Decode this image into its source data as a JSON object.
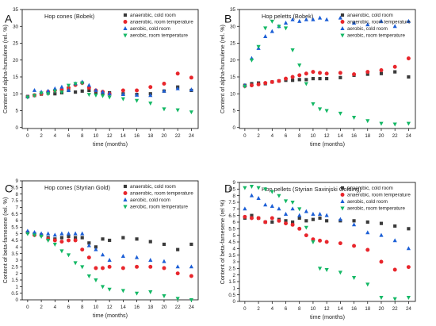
{
  "colors": {
    "anaerobic_cold": "#3a3a3a",
    "anaerobic_room": "#e8262c",
    "aerobic_cold": "#1c5fd6",
    "aerobic_room": "#14b865"
  },
  "chart_data": [
    {
      "panel": "A",
      "type": "scatter",
      "title": "Hop cones (Bobek)",
      "xlabel": "time (months)",
      "ylabel": "Content of alpha-humulene (rel. %)",
      "xlim": [
        -0.8,
        25
      ],
      "ylim": [
        -0.3,
        35
      ],
      "xticks": [
        0,
        2,
        4,
        6,
        8,
        10,
        12,
        14,
        16,
        18,
        20,
        22,
        24
      ],
      "yticks": [
        0,
        5,
        10,
        15,
        20,
        25,
        30,
        35
      ],
      "legend_position": "top-right",
      "series": [
        {
          "name": "anaerobic, cold room",
          "marker": "square",
          "color_key": "anaerobic_cold",
          "x": [
            0,
            1,
            2,
            3,
            4,
            5,
            6,
            7,
            8,
            9,
            10,
            11,
            12,
            14,
            16,
            18,
            20,
            22,
            24
          ],
          "y": [
            9.2,
            9.5,
            9.9,
            10.2,
            10.0,
            10.3,
            11.0,
            10.5,
            10.8,
            11.0,
            10.5,
            10.0,
            10.3,
            10.0,
            9.8,
            10.0,
            10.8,
            12.0,
            11.0
          ]
        },
        {
          "name": "anaerobic, room temperature",
          "marker": "circle",
          "color_key": "anaerobic_room",
          "x": [
            0,
            1,
            2,
            3,
            4,
            5,
            6,
            7,
            8,
            9,
            10,
            11,
            12,
            14,
            16,
            18,
            20,
            22,
            24
          ],
          "y": [
            9.1,
            9.6,
            10.0,
            10.6,
            11.0,
            11.2,
            11.8,
            12.6,
            13.2,
            11.8,
            11.0,
            10.6,
            10.0,
            11.0,
            11.0,
            12.0,
            13.0,
            16.0,
            14.8
          ]
        },
        {
          "name": "aerobic, cold room",
          "marker": "triangle-up",
          "color_key": "aerobic_cold",
          "x": [
            0,
            1,
            2,
            3,
            4,
            5,
            6,
            7,
            8,
            9,
            10,
            11,
            12,
            14,
            16,
            18,
            20,
            22,
            24
          ],
          "y": [
            9.1,
            11.0,
            10.5,
            10.8,
            11.5,
            12.0,
            11.0,
            13.0,
            13.5,
            12.5,
            11.0,
            10.5,
            10.0,
            9.8,
            9.6,
            9.5,
            10.8,
            11.5,
            11.2
          ]
        },
        {
          "name": "aerobic, room temperature",
          "marker": "triangle-down",
          "color_key": "aerobic_room",
          "x": [
            0,
            1,
            2,
            3,
            4,
            5,
            6,
            7,
            8,
            9,
            10,
            11,
            12,
            14,
            16,
            18,
            20,
            22,
            24
          ],
          "y": [
            9.0,
            9.5,
            10.2,
            10.0,
            10.8,
            10.5,
            12.5,
            13.0,
            13.2,
            9.8,
            9.6,
            9.4,
            9.0,
            8.5,
            8.0,
            7.2,
            5.5,
            5.2,
            4.6
          ]
        }
      ]
    },
    {
      "panel": "B",
      "type": "scatter",
      "title": "Hop peletts (Bobek)",
      "xlabel": "time (months)",
      "ylabel": "Content of alpha-humulene (rel. %)",
      "xlim": [
        -0.8,
        25
      ],
      "ylim": [
        -0.3,
        35
      ],
      "xticks": [
        0,
        2,
        4,
        6,
        8,
        10,
        12,
        14,
        16,
        18,
        20,
        22,
        24
      ],
      "yticks": [
        0,
        5,
        10,
        15,
        20,
        25,
        30,
        35
      ],
      "legend_position": "top-right",
      "series": [
        {
          "name": "anaerobic, cold room",
          "marker": "square",
          "color_key": "anaerobic_cold",
          "x": [
            0,
            1,
            2,
            3,
            4,
            5,
            6,
            7,
            8,
            9,
            10,
            11,
            12,
            14,
            16,
            18,
            20,
            22,
            24
          ],
          "y": [
            12.5,
            13.0,
            13.2,
            13.0,
            13.5,
            13.8,
            14.0,
            14.0,
            14.2,
            14.2,
            14.5,
            14.5,
            14.5,
            14.8,
            15.5,
            15.8,
            16.0,
            16.5,
            15.0
          ]
        },
        {
          "name": "anaerobic, room temperature",
          "marker": "circle",
          "color_key": "anaerobic_room",
          "x": [
            0,
            1,
            2,
            3,
            4,
            5,
            6,
            7,
            8,
            9,
            10,
            11,
            12,
            14,
            16,
            18,
            20,
            22,
            24
          ],
          "y": [
            12.3,
            12.5,
            12.8,
            13.2,
            13.5,
            13.8,
            14.5,
            15.0,
            15.5,
            16.0,
            16.5,
            16.2,
            16.0,
            16.2,
            15.8,
            16.5,
            17.0,
            18.0,
            20.5
          ]
        },
        {
          "name": "aerobic, cold room",
          "marker": "triangle-up",
          "color_key": "aerobic_cold",
          "x": [
            0,
            1,
            2,
            3,
            4,
            5,
            6,
            7,
            8,
            9,
            10,
            11,
            12,
            14,
            16,
            18,
            20,
            22,
            24
          ],
          "y": [
            12.5,
            20.5,
            23.5,
            27.0,
            28.5,
            30.0,
            31.0,
            32.0,
            31.5,
            32.0,
            32.0,
            32.5,
            32.0,
            32.5,
            31.0,
            30.5,
            31.5,
            30.0,
            31.5
          ]
        },
        {
          "name": "aerobic, room temperature",
          "marker": "triangle-down",
          "color_key": "aerobic_room",
          "x": [
            0,
            1,
            2,
            3,
            4,
            5,
            6,
            7,
            8,
            9,
            10,
            11,
            12,
            14,
            16,
            18,
            20,
            22,
            24
          ],
          "y": [
            12.2,
            20.0,
            24.0,
            29.5,
            31.5,
            30.0,
            29.5,
            23.0,
            18.5,
            13.0,
            7.0,
            5.5,
            5.0,
            4.2,
            3.0,
            2.0,
            1.2,
            1.0,
            1.2
          ]
        }
      ]
    },
    {
      "panel": "C",
      "type": "scatter",
      "title": "Hop cones (Styrian Gold)",
      "xlabel": "time (months)",
      "ylabel": "Content of beta-farnesene (rel. %)",
      "xlim": [
        -0.8,
        25
      ],
      "ylim": [
        0,
        9
      ],
      "xticks": [
        0,
        2,
        4,
        6,
        8,
        10,
        12,
        14,
        16,
        18,
        20,
        22,
        24
      ],
      "yticks": [
        0,
        0.5,
        1,
        1.5,
        2,
        2.5,
        3,
        3.5,
        4,
        4.5,
        5,
        5.5,
        6,
        6.5,
        7,
        7.5,
        8,
        8.5,
        9
      ],
      "legend_position": "top-right",
      "series": [
        {
          "name": "anaerobic, cold room",
          "marker": "square",
          "color_key": "anaerobic_cold",
          "x": [
            0,
            1,
            2,
            3,
            4,
            5,
            6,
            7,
            8,
            9,
            10,
            11,
            12,
            14,
            16,
            18,
            20,
            22,
            24
          ],
          "y": [
            5.1,
            5.0,
            4.9,
            4.7,
            4.6,
            4.7,
            4.8,
            4.7,
            4.7,
            4.3,
            4.0,
            4.6,
            4.5,
            4.7,
            4.6,
            4.4,
            4.2,
            3.8,
            4.2
          ]
        },
        {
          "name": "anaerobic, room temperature",
          "marker": "circle",
          "color_key": "anaerobic_room",
          "x": [
            0,
            1,
            2,
            3,
            4,
            5,
            6,
            7,
            8,
            9,
            10,
            11,
            12,
            14,
            16,
            18,
            20,
            22,
            24
          ],
          "y": [
            5.1,
            4.9,
            4.9,
            4.6,
            4.5,
            4.4,
            4.5,
            4.5,
            3.8,
            3.2,
            2.4,
            2.4,
            2.5,
            2.4,
            2.5,
            2.5,
            2.4,
            2.0,
            1.8
          ]
        },
        {
          "name": "aerobic, cold room",
          "marker": "triangle-up",
          "color_key": "aerobic_cold",
          "x": [
            0,
            1,
            2,
            3,
            4,
            5,
            6,
            7,
            8,
            9,
            10,
            11,
            12,
            14,
            16,
            18,
            20,
            22,
            24
          ],
          "y": [
            5.2,
            5.1,
            5.0,
            5.0,
            4.9,
            5.0,
            5.0,
            5.0,
            5.0,
            4.1,
            3.8,
            3.4,
            3.0,
            3.3,
            3.2,
            3.0,
            2.9,
            2.5,
            2.5
          ]
        },
        {
          "name": "aerobic, room temperature",
          "marker": "triangle-down",
          "color_key": "aerobic_room",
          "x": [
            0,
            1,
            2,
            3,
            4,
            5,
            6,
            7,
            8,
            9,
            10,
            11,
            12,
            14,
            16,
            18,
            20,
            22,
            24
          ],
          "y": [
            5.0,
            4.9,
            4.8,
            4.5,
            4.2,
            3.7,
            3.4,
            2.8,
            2.5,
            1.8,
            1.5,
            1.0,
            0.8,
            0.7,
            0.5,
            0.6,
            0.3,
            0.1,
            0.0
          ]
        }
      ]
    },
    {
      "panel": "D",
      "type": "scatter",
      "title": "Hop pellets (Styrian Savinjski Golding)",
      "xlabel": "time (months)",
      "ylabel": "Content of beta-farnesene (rel %)",
      "xlim": [
        -0.8,
        25
      ],
      "ylim": [
        0,
        9
      ],
      "xticks": [
        0,
        2,
        4,
        6,
        8,
        10,
        12,
        14,
        16,
        18,
        20,
        22,
        24
      ],
      "yticks": [
        0,
        0.5,
        1,
        1.5,
        2,
        2.5,
        3,
        3.5,
        4,
        4.5,
        5,
        5.5,
        6,
        6.5,
        7,
        7.5,
        8,
        8.5,
        9
      ],
      "legend_position": "top-right",
      "series": [
        {
          "name": "anaerobic, cold room",
          "marker": "square",
          "color_key": "anaerobic_cold",
          "x": [
            0,
            1,
            2,
            3,
            4,
            5,
            6,
            7,
            8,
            9,
            10,
            11,
            12,
            14,
            16,
            18,
            20,
            22,
            24
          ],
          "y": [
            6.3,
            6.5,
            6.3,
            6.0,
            6.0,
            6.2,
            6.1,
            6.0,
            6.3,
            6.1,
            6.2,
            6.3,
            6.1,
            6.1,
            6.1,
            6.0,
            5.9,
            5.7,
            5.5
          ]
        },
        {
          "name": "anaerobic, room temperature",
          "marker": "circle",
          "color_key": "anaerobic_room",
          "x": [
            0,
            1,
            2,
            3,
            4,
            5,
            6,
            7,
            8,
            9,
            10,
            11,
            12,
            14,
            16,
            18,
            20,
            22,
            24
          ],
          "y": [
            6.4,
            6.3,
            6.3,
            6.0,
            6.3,
            6.1,
            5.9,
            5.8,
            5.5,
            5.0,
            4.7,
            4.6,
            4.5,
            4.4,
            4.2,
            3.9,
            3.0,
            2.4,
            2.6
          ]
        },
        {
          "name": "aerobic, cold room",
          "marker": "triangle-up",
          "color_key": "aerobic_cold",
          "x": [
            0,
            1,
            2,
            3,
            4,
            5,
            6,
            7,
            8,
            9,
            10,
            11,
            12,
            14,
            16,
            18,
            20,
            22,
            24
          ],
          "y": [
            7.0,
            8.0,
            7.8,
            7.3,
            7.2,
            7.0,
            6.6,
            7.0,
            6.5,
            6.8,
            6.6,
            6.6,
            6.5,
            6.2,
            5.8,
            5.2,
            5.0,
            4.6,
            4.0
          ]
        },
        {
          "name": "aerobic, room temperature",
          "marker": "triangle-down",
          "color_key": "aerobic_room",
          "x": [
            0,
            1,
            2,
            3,
            4,
            5,
            6,
            7,
            8,
            9,
            10,
            11,
            12,
            14,
            16,
            18,
            20,
            22,
            24
          ],
          "y": [
            8.6,
            8.7,
            8.6,
            8.5,
            8.3,
            8.0,
            7.6,
            7.5,
            7.0,
            5.6,
            4.5,
            2.5,
            2.4,
            2.2,
            1.8,
            1.3,
            0.3,
            0.2,
            0.3
          ]
        }
      ]
    }
  ]
}
